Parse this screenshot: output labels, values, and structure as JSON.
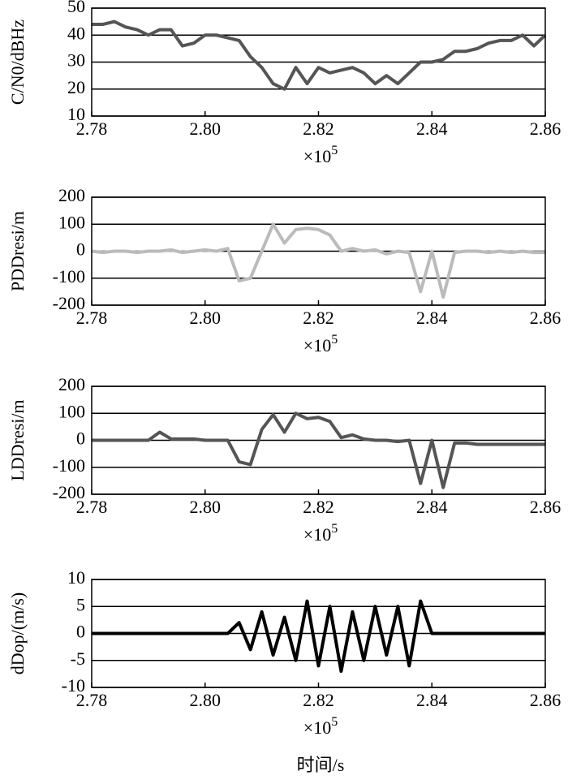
{
  "chart_data": [
    {
      "type": "line",
      "ylabel": "C/N0/dBHz",
      "x_scale": "×10",
      "x_scale_exponent": "5",
      "x": [
        2.78,
        2.782,
        2.784,
        2.786,
        2.788,
        2.79,
        2.792,
        2.794,
        2.796,
        2.798,
        2.8,
        2.802,
        2.804,
        2.806,
        2.808,
        2.81,
        2.812,
        2.814,
        2.816,
        2.818,
        2.82,
        2.822,
        2.824,
        2.826,
        2.828,
        2.83,
        2.832,
        2.834,
        2.836,
        2.838,
        2.84,
        2.842,
        2.844,
        2.846,
        2.848,
        2.85,
        2.852,
        2.854,
        2.856,
        2.858,
        2.86
      ],
      "series": [
        {
          "color": "#555555",
          "values": [
            44,
            44,
            45,
            43,
            42,
            40,
            42,
            42,
            36,
            37,
            40,
            40,
            39,
            38,
            32,
            28,
            22,
            20,
            28,
            22,
            28,
            26,
            27,
            28,
            26,
            22,
            25,
            22,
            26,
            30,
            30,
            31,
            34,
            34,
            35,
            37,
            38,
            38,
            40,
            36,
            40
          ]
        }
      ],
      "xlim": [
        2.78,
        2.86
      ],
      "xticks": [
        2.78,
        {
          "value": 2.8,
          "label": "2.80"
        },
        2.82,
        2.84,
        2.86
      ],
      "ylim": [
        10,
        50
      ],
      "yticks": [
        10,
        20,
        30,
        40,
        50
      ],
      "grid": true
    },
    {
      "type": "line",
      "ylabel": "PDDresi/m",
      "x_scale": "×10",
      "x_scale_exponent": "5",
      "x": [
        2.78,
        2.782,
        2.784,
        2.786,
        2.788,
        2.79,
        2.792,
        2.794,
        2.796,
        2.798,
        2.8,
        2.802,
        2.804,
        2.806,
        2.808,
        2.81,
        2.812,
        2.814,
        2.816,
        2.818,
        2.82,
        2.822,
        2.824,
        2.826,
        2.828,
        2.83,
        2.832,
        2.834,
        2.836,
        2.838,
        2.84,
        2.842,
        2.844,
        2.846,
        2.848,
        2.85,
        2.852,
        2.854,
        2.856,
        2.858,
        2.86
      ],
      "series": [
        {
          "color": "#bbbbbb",
          "values": [
            0,
            -5,
            0,
            0,
            -5,
            0,
            0,
            5,
            -5,
            0,
            5,
            0,
            10,
            -110,
            -100,
            0,
            100,
            30,
            80,
            85,
            80,
            60,
            0,
            10,
            0,
            5,
            -10,
            0,
            -5,
            -150,
            0,
            -170,
            -5,
            0,
            0,
            -5,
            0,
            -5,
            0,
            -5,
            -5
          ]
        }
      ],
      "xlim": [
        2.78,
        2.86
      ],
      "xticks": [
        2.78,
        {
          "value": 2.8,
          "label": "2.80"
        },
        2.82,
        2.84,
        2.86
      ],
      "ylim": [
        -200,
        200
      ],
      "yticks": [
        -200,
        -100,
        0,
        100,
        200
      ],
      "grid": true
    },
    {
      "type": "line",
      "ylabel": "LDDresi/m",
      "x_scale": "×10",
      "x_scale_exponent": "5",
      "x": [
        2.78,
        2.782,
        2.784,
        2.786,
        2.788,
        2.79,
        2.792,
        2.794,
        2.796,
        2.798,
        2.8,
        2.802,
        2.804,
        2.806,
        2.808,
        2.81,
        2.812,
        2.814,
        2.816,
        2.818,
        2.82,
        2.822,
        2.824,
        2.826,
        2.828,
        2.83,
        2.832,
        2.834,
        2.836,
        2.838,
        2.84,
        2.842,
        2.844,
        2.846,
        2.848,
        2.85,
        2.852,
        2.854,
        2.856,
        2.858,
        2.86
      ],
      "series": [
        {
          "color": "#555555",
          "values": [
            0,
            0,
            0,
            0,
            0,
            0,
            30,
            5,
            5,
            5,
            0,
            0,
            0,
            -80,
            -90,
            40,
            95,
            30,
            100,
            80,
            85,
            70,
            10,
            20,
            5,
            0,
            0,
            -5,
            0,
            -160,
            0,
            -175,
            -10,
            -10,
            -15,
            -15,
            -15,
            -15,
            -15,
            -15,
            -15
          ]
        }
      ],
      "xlim": [
        2.78,
        2.86
      ],
      "xticks": [
        2.78,
        {
          "value": 2.8,
          "label": "2.80"
        },
        2.82,
        2.84,
        2.86
      ],
      "ylim": [
        -200,
        200
      ],
      "yticks": [
        -200,
        -100,
        0,
        100,
        200
      ],
      "grid": true
    },
    {
      "type": "line",
      "ylabel": "dDop/(m/s)",
      "x_scale": "×10",
      "x_scale_exponent": "5",
      "xlabel": "时间/s",
      "x": [
        2.78,
        2.782,
        2.784,
        2.786,
        2.788,
        2.79,
        2.792,
        2.794,
        2.796,
        2.798,
        2.8,
        2.802,
        2.804,
        2.806,
        2.808,
        2.81,
        2.812,
        2.814,
        2.816,
        2.818,
        2.82,
        2.822,
        2.824,
        2.826,
        2.828,
        2.83,
        2.832,
        2.834,
        2.836,
        2.838,
        2.84,
        2.842,
        2.844,
        2.846,
        2.848,
        2.85,
        2.852,
        2.854,
        2.856,
        2.858,
        2.86
      ],
      "series": [
        {
          "color": "#000000",
          "values": [
            0,
            0,
            0,
            0,
            0,
            0,
            0,
            0,
            0,
            0,
            0,
            0,
            0,
            2,
            -3,
            4,
            -4,
            3,
            -5,
            6,
            -6,
            5,
            -7,
            4,
            -5,
            5,
            -4,
            5,
            -6,
            6,
            0,
            0,
            0,
            0,
            0,
            0,
            0,
            0,
            0,
            0,
            0
          ]
        }
      ],
      "xlim": [
        2.78,
        2.86
      ],
      "xticks": [
        2.78,
        {
          "value": 2.8,
          "label": "2.80"
        },
        2.82,
        2.84,
        2.86
      ],
      "ylim": [
        -10,
        10
      ],
      "yticks": [
        -10,
        -5,
        0,
        5,
        10
      ],
      "grid": true
    }
  ]
}
